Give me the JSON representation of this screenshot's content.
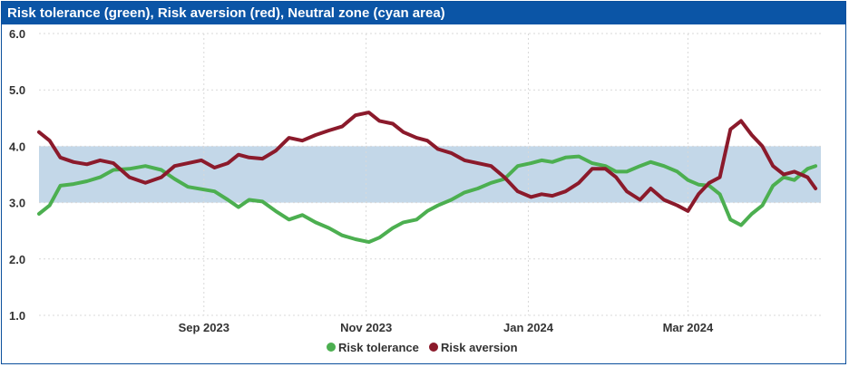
{
  "title": "Risk tolerance (green), Risk aversion (red), Neutral zone (cyan area)",
  "colors": {
    "title_bg": "#0b55a6",
    "risk_tolerance": "#4caf50",
    "risk_aversion": "#8b1a2b",
    "neutral_zone": "#c3d7e8",
    "grid": "#d9d9d9"
  },
  "chart_data": {
    "type": "line",
    "title": "Risk tolerance (green), Risk aversion (red), Neutral zone (cyan area)",
    "x_start": "2023-07-01",
    "x_end": "2024-04-20",
    "x_ticks": [
      {
        "date": "2023-09-01",
        "label": "Sep 2023"
      },
      {
        "date": "2023-11-01",
        "label": "Nov 2023"
      },
      {
        "date": "2024-01-01",
        "label": "Jan 2024"
      },
      {
        "date": "2024-03-01",
        "label": "Mar 2024"
      }
    ],
    "y_ticks": [
      "1.0",
      "2.0",
      "3.0",
      "4.0",
      "5.0",
      "6.0"
    ],
    "ylim": [
      1.0,
      6.0
    ],
    "grid": true,
    "legend_position": "bottom",
    "neutral_zone": {
      "low": 3.0,
      "high": 4.0
    },
    "series": [
      {
        "name": "Risk tolerance",
        "color": "#4caf50",
        "points": [
          [
            "2023-07-01",
            2.8
          ],
          [
            "2023-07-05",
            2.95
          ],
          [
            "2023-07-09",
            3.3
          ],
          [
            "2023-07-14",
            3.33
          ],
          [
            "2023-07-19",
            3.38
          ],
          [
            "2023-07-24",
            3.45
          ],
          [
            "2023-07-29",
            3.58
          ],
          [
            "2023-08-04",
            3.6
          ],
          [
            "2023-08-10",
            3.65
          ],
          [
            "2023-08-16",
            3.58
          ],
          [
            "2023-08-21",
            3.42
          ],
          [
            "2023-08-26",
            3.28
          ],
          [
            "2023-08-31",
            3.24
          ],
          [
            "2023-09-05",
            3.2
          ],
          [
            "2023-09-10",
            3.05
          ],
          [
            "2023-09-14",
            2.92
          ],
          [
            "2023-09-18",
            3.05
          ],
          [
            "2023-09-23",
            3.02
          ],
          [
            "2023-09-28",
            2.85
          ],
          [
            "2023-10-03",
            2.7
          ],
          [
            "2023-10-08",
            2.78
          ],
          [
            "2023-10-13",
            2.65
          ],
          [
            "2023-10-18",
            2.55
          ],
          [
            "2023-10-23",
            2.42
          ],
          [
            "2023-10-28",
            2.35
          ],
          [
            "2023-11-02",
            2.3
          ],
          [
            "2023-11-06",
            2.38
          ],
          [
            "2023-11-11",
            2.55
          ],
          [
            "2023-11-15",
            2.65
          ],
          [
            "2023-11-20",
            2.7
          ],
          [
            "2023-11-24",
            2.85
          ],
          [
            "2023-11-28",
            2.95
          ],
          [
            "2023-12-03",
            3.05
          ],
          [
            "2023-12-08",
            3.18
          ],
          [
            "2023-12-13",
            3.25
          ],
          [
            "2023-12-18",
            3.35
          ],
          [
            "2023-12-23",
            3.42
          ],
          [
            "2023-12-28",
            3.65
          ],
          [
            "2024-01-02",
            3.7
          ],
          [
            "2024-01-06",
            3.75
          ],
          [
            "2024-01-10",
            3.72
          ],
          [
            "2024-01-15",
            3.8
          ],
          [
            "2024-01-20",
            3.82
          ],
          [
            "2024-01-25",
            3.7
          ],
          [
            "2024-01-30",
            3.65
          ],
          [
            "2024-02-03",
            3.55
          ],
          [
            "2024-02-07",
            3.55
          ],
          [
            "2024-02-12",
            3.65
          ],
          [
            "2024-02-16",
            3.72
          ],
          [
            "2024-02-21",
            3.65
          ],
          [
            "2024-02-26",
            3.55
          ],
          [
            "2024-03-01",
            3.4
          ],
          [
            "2024-03-05",
            3.32
          ],
          [
            "2024-03-09",
            3.3
          ],
          [
            "2024-03-13",
            3.15
          ],
          [
            "2024-03-17",
            2.7
          ],
          [
            "2024-03-21",
            2.6
          ],
          [
            "2024-03-25",
            2.8
          ],
          [
            "2024-03-29",
            2.95
          ],
          [
            "2024-04-02",
            3.3
          ],
          [
            "2024-04-06",
            3.45
          ],
          [
            "2024-04-10",
            3.4
          ],
          [
            "2024-04-15",
            3.6
          ],
          [
            "2024-04-18",
            3.65
          ]
        ]
      },
      {
        "name": "Risk aversion",
        "color": "#8b1a2b",
        "points": [
          [
            "2023-07-01",
            4.25
          ],
          [
            "2023-07-05",
            4.1
          ],
          [
            "2023-07-09",
            3.8
          ],
          [
            "2023-07-14",
            3.72
          ],
          [
            "2023-07-19",
            3.68
          ],
          [
            "2023-07-24",
            3.75
          ],
          [
            "2023-07-29",
            3.7
          ],
          [
            "2023-08-04",
            3.45
          ],
          [
            "2023-08-10",
            3.35
          ],
          [
            "2023-08-16",
            3.45
          ],
          [
            "2023-08-21",
            3.65
          ],
          [
            "2023-08-26",
            3.7
          ],
          [
            "2023-08-31",
            3.75
          ],
          [
            "2023-09-05",
            3.62
          ],
          [
            "2023-09-10",
            3.7
          ],
          [
            "2023-09-14",
            3.85
          ],
          [
            "2023-09-18",
            3.8
          ],
          [
            "2023-09-23",
            3.78
          ],
          [
            "2023-09-28",
            3.92
          ],
          [
            "2023-10-03",
            4.15
          ],
          [
            "2023-10-08",
            4.1
          ],
          [
            "2023-10-13",
            4.2
          ],
          [
            "2023-10-18",
            4.28
          ],
          [
            "2023-10-23",
            4.35
          ],
          [
            "2023-10-28",
            4.55
          ],
          [
            "2023-11-02",
            4.6
          ],
          [
            "2023-11-06",
            4.45
          ],
          [
            "2023-11-11",
            4.4
          ],
          [
            "2023-11-15",
            4.25
          ],
          [
            "2023-11-20",
            4.15
          ],
          [
            "2023-11-24",
            4.1
          ],
          [
            "2023-11-28",
            3.95
          ],
          [
            "2023-12-03",
            3.88
          ],
          [
            "2023-12-08",
            3.75
          ],
          [
            "2023-12-13",
            3.7
          ],
          [
            "2023-12-18",
            3.65
          ],
          [
            "2023-12-23",
            3.45
          ],
          [
            "2023-12-28",
            3.2
          ],
          [
            "2024-01-02",
            3.1
          ],
          [
            "2024-01-06",
            3.15
          ],
          [
            "2024-01-10",
            3.12
          ],
          [
            "2024-01-15",
            3.2
          ],
          [
            "2024-01-20",
            3.35
          ],
          [
            "2024-01-25",
            3.6
          ],
          [
            "2024-01-30",
            3.6
          ],
          [
            "2024-02-03",
            3.45
          ],
          [
            "2024-02-07",
            3.2
          ],
          [
            "2024-02-12",
            3.05
          ],
          [
            "2024-02-16",
            3.25
          ],
          [
            "2024-02-21",
            3.05
          ],
          [
            "2024-02-26",
            2.95
          ],
          [
            "2024-03-01",
            2.85
          ],
          [
            "2024-03-05",
            3.15
          ],
          [
            "2024-03-09",
            3.35
          ],
          [
            "2024-03-13",
            3.45
          ],
          [
            "2024-03-17",
            4.3
          ],
          [
            "2024-03-21",
            4.45
          ],
          [
            "2024-03-25",
            4.2
          ],
          [
            "2024-03-29",
            4.0
          ],
          [
            "2024-04-02",
            3.65
          ],
          [
            "2024-04-06",
            3.5
          ],
          [
            "2024-04-10",
            3.55
          ],
          [
            "2024-04-15",
            3.45
          ],
          [
            "2024-04-18",
            3.25
          ]
        ]
      }
    ]
  }
}
